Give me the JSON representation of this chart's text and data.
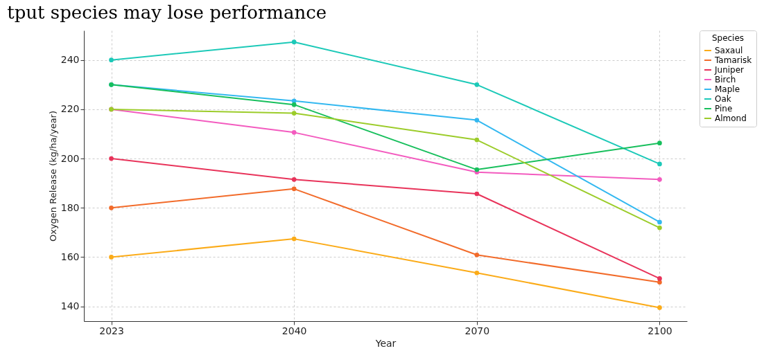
{
  "chart_data": {
    "type": "line",
    "title": "tput species may lose performance",
    "xlabel": "Year",
    "ylabel": "Oxygen Release (kg/ha/year)",
    "legend_title": "Species",
    "categories": [
      "2023",
      "2040",
      "2070",
      "2100"
    ],
    "series": [
      {
        "name": "Saxaul",
        "color": "#fbab18",
        "values": [
          160,
          167.4,
          153.6,
          139.5
        ]
      },
      {
        "name": "Tamarisk",
        "color": "#f26b2a",
        "values": [
          180,
          187.7,
          160.9,
          149.8
        ]
      },
      {
        "name": "Juniper",
        "color": "#e8335a",
        "values": [
          200,
          191.5,
          185.7,
          151.3
        ]
      },
      {
        "name": "Birch",
        "color": "#f35bbf",
        "values": [
          220,
          210.6,
          194.5,
          191.5
        ]
      },
      {
        "name": "Maple",
        "color": "#33b8f0",
        "values": [
          230,
          223.4,
          215.6,
          174.2
        ]
      },
      {
        "name": "Oak",
        "color": "#1cc9b8",
        "values": [
          240,
          247.3,
          230,
          197.8
        ]
      },
      {
        "name": "Pine",
        "color": "#17bf5c",
        "values": [
          230,
          221.9,
          195.5,
          206.3
        ]
      },
      {
        "name": "Almond",
        "color": "#9ccc2a",
        "values": [
          220,
          218.4,
          207.6,
          171.9
        ]
      }
    ],
    "ylim": [
      134,
      252
    ],
    "yticks": [
      140,
      160,
      180,
      200,
      220,
      240
    ],
    "grid": true,
    "legend": "top right",
    "marker": "circle",
    "line_style": "solid"
  }
}
